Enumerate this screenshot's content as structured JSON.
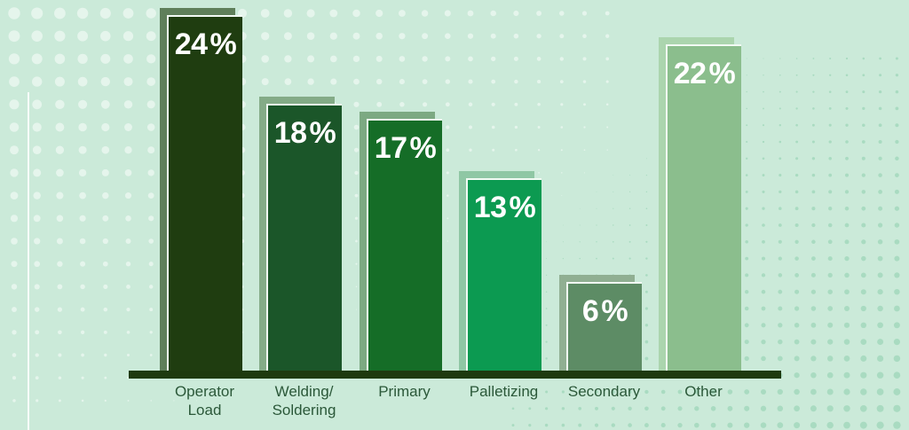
{
  "chart_data": {
    "type": "bar",
    "title": "",
    "xlabel": "",
    "ylabel": "",
    "categories": [
      "Operator Load",
      "Welding/Soldering",
      "Primary",
      "Palletizing",
      "Secondary",
      "Other"
    ],
    "values": [
      24,
      18,
      17,
      13,
      6,
      22
    ],
    "unit": "%",
    "value_labels": [
      "24%",
      "18%",
      "17%",
      "13%",
      "6%",
      "22%"
    ],
    "ylim": [
      0,
      24
    ],
    "grid": false,
    "legend": false,
    "bar_colors": [
      "#1F3D10",
      "#1B5629",
      "#156D27",
      "#0C9A51",
      "#5D8C65",
      "#8BBE8D"
    ],
    "shadow_colors": [
      "#5F7F5A",
      "#84AB87",
      "#7CA982",
      "#8FC7A4",
      "#90AF92",
      "#ABD5AE"
    ],
    "bar_outline_color": "#F2FAF4",
    "axis_color": "#1E3A0F",
    "background_color": "#CBEAD9",
    "label_color": "#2B5839",
    "value_text_color": "#FFFFFF",
    "dot_colors": {
      "left": "rgba(255,255,255,0.5)",
      "right": "#A3D8BC"
    }
  },
  "bars": [
    {
      "value": "24",
      "unit": "%",
      "line1": "Operator",
      "line2": "Load"
    },
    {
      "value": "18",
      "unit": "%",
      "line1": "Welding/",
      "line2": "Soldering"
    },
    {
      "value": "17",
      "unit": "%",
      "line1": "Primary",
      "line2": ""
    },
    {
      "value": "13",
      "unit": "%",
      "line1": "Palletizing",
      "line2": ""
    },
    {
      "value": "6",
      "unit": "%",
      "line1": "Secondary",
      "line2": ""
    },
    {
      "value": "22",
      "unit": "%",
      "line1": "Other",
      "line2": ""
    }
  ]
}
